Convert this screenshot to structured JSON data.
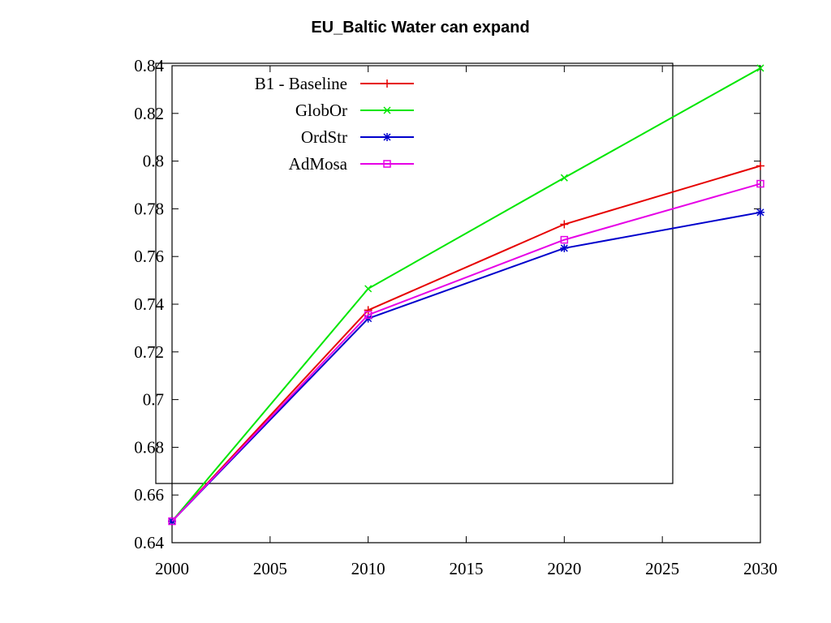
{
  "chart_data": {
    "type": "line",
    "title": "EU_Baltic Water can expand",
    "xlabel": "",
    "ylabel": "",
    "x": [
      2000,
      2010,
      2020,
      2030
    ],
    "xlim": [
      2000,
      2030
    ],
    "ylim": [
      0.64,
      0.84
    ],
    "x_ticks": [
      2000,
      2005,
      2010,
      2015,
      2020,
      2025,
      2030
    ],
    "x_tick_labels": [
      "2000",
      "2005",
      "2010",
      "2015",
      "2020",
      "2025",
      "2030"
    ],
    "y_ticks": [
      0.64,
      0.66,
      0.68,
      0.7,
      0.72,
      0.74,
      0.76,
      0.78,
      0.8,
      0.82,
      0.84
    ],
    "y_tick_labels": [
      "0.64",
      "0.66",
      "0.68",
      "0.7",
      "0.72",
      "0.74",
      "0.76",
      "0.78",
      "0.8",
      "0.82",
      "0.84"
    ],
    "grid": false,
    "legend_position": "top-left",
    "series": [
      {
        "name": "B1 - Baseline",
        "color": "#e60000",
        "marker": "plus",
        "values": [
          0.649,
          0.7375,
          0.7735,
          0.798
        ]
      },
      {
        "name": "GlobOr",
        "color": "#00e600",
        "marker": "cross",
        "values": [
          0.649,
          0.7465,
          0.793,
          0.839
        ]
      },
      {
        "name": "OrdStr",
        "color": "#0000cc",
        "marker": "star",
        "values": [
          0.649,
          0.734,
          0.7635,
          0.7785
        ]
      },
      {
        "name": "AdMosa",
        "color": "#e600e6",
        "marker": "square",
        "values": [
          0.649,
          0.7355,
          0.767,
          0.7905
        ]
      }
    ]
  }
}
